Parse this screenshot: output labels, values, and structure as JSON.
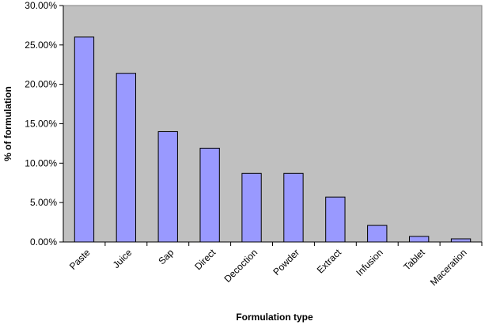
{
  "chart_data": {
    "type": "bar",
    "categories": [
      "Paste",
      "Juice",
      "Sap",
      "Direct",
      "Decoction",
      "Powder",
      "Extract",
      "Infusion",
      "Tablet",
      "Maceration"
    ],
    "values": [
      26.0,
      21.4,
      14.0,
      11.9,
      8.7,
      8.7,
      5.7,
      2.1,
      0.7,
      0.4
    ],
    "xlabel": "Formulation type",
    "ylabel": "% of formulation",
    "ylim": [
      0,
      30
    ],
    "yticks": [
      "0.00%",
      "5.00%",
      "10.00%",
      "15.00%",
      "20.00%",
      "25.00%",
      "30.00%"
    ],
    "grid": false,
    "legend": "none",
    "colors": {
      "plot_background": "#c0c0c0",
      "bar_fill": "#9999ff",
      "bar_stroke": "#000000"
    }
  }
}
